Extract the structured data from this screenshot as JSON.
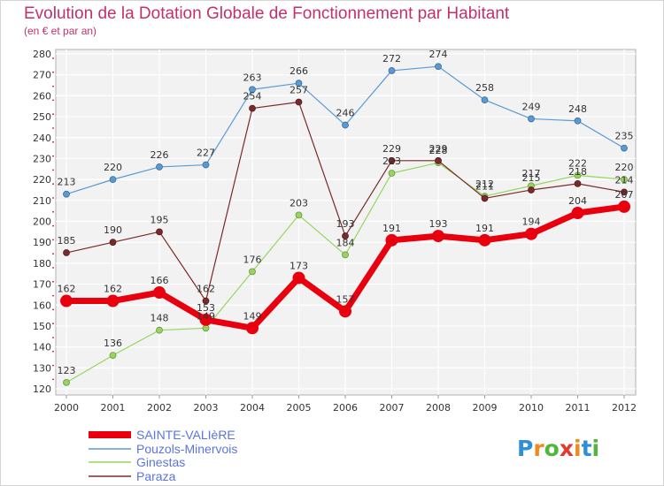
{
  "chart_data": {
    "type": "line",
    "title": "Evolution de la Dotation Globale de Fonctionnement par Habitant",
    "subtitle": "(en € et par an)",
    "x": [
      "2000",
      "2001",
      "2002",
      "2003",
      "2004",
      "2005",
      "2006",
      "2007",
      "2008",
      "2009",
      "2010",
      "2011",
      "2012"
    ],
    "ylim": [
      120,
      280
    ],
    "yticks": [
      120,
      130,
      140,
      150,
      160,
      170,
      180,
      190,
      200,
      210,
      220,
      230,
      240,
      250,
      260,
      270,
      280
    ],
    "grid": true,
    "legend_position": "bottom-left",
    "series": [
      {
        "name": "SAINTE-VALIèRE",
        "color": "#e8000e",
        "values": [
          162,
          162,
          166,
          153,
          149,
          173,
          157,
          191,
          193,
          191,
          194,
          204,
          207
        ]
      },
      {
        "name": "Pouzols-Minervois",
        "color": "#5a9ad4",
        "values": [
          213,
          220,
          226,
          227,
          263,
          266,
          246,
          272,
          274,
          258,
          249,
          248,
          235
        ]
      },
      {
        "name": "Ginestas",
        "color": "#97d55f",
        "values": [
          123,
          136,
          148,
          149,
          176,
          203,
          184,
          223,
          228,
          212,
          217,
          222,
          220
        ]
      },
      {
        "name": "Paraza",
        "color": "#7a2a2a",
        "values": [
          185,
          190,
          195,
          162,
          254,
          257,
          193,
          229,
          229,
          211,
          215,
          218,
          214
        ]
      }
    ]
  },
  "brand": {
    "logo_text": "Proxiti"
  }
}
